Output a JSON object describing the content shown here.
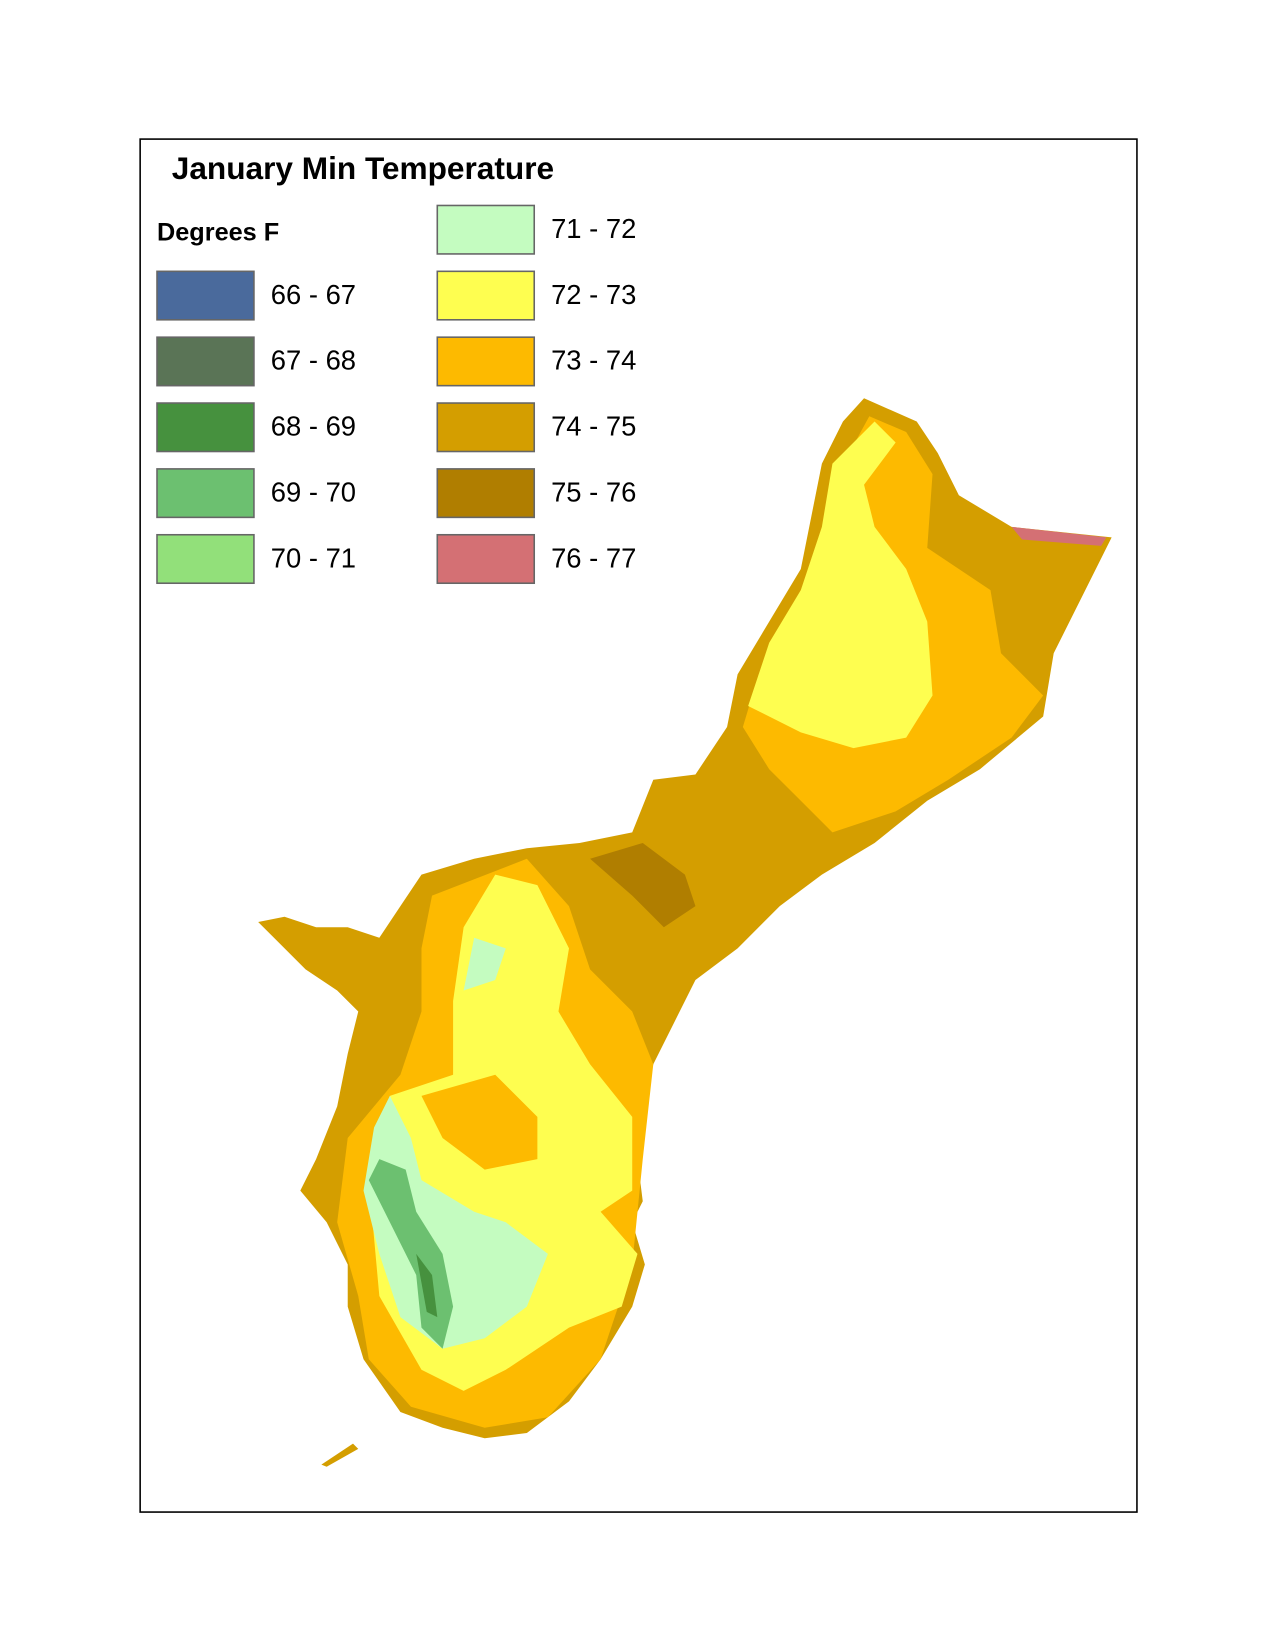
{
  "title": "January Min Temperature",
  "legend": {
    "title": "Degrees F",
    "items": [
      {
        "label": "66 - 67",
        "color": "#4a6a9c"
      },
      {
        "label": "67 - 68",
        "color": "#5a7456"
      },
      {
        "label": "68 - 69",
        "color": "#46913e"
      },
      {
        "label": "69 - 70",
        "color": "#6cc070"
      },
      {
        "label": "70 - 71",
        "color": "#92e07a"
      },
      {
        "label": "71 - 72",
        "color": "#c4fcc0"
      },
      {
        "label": "72 - 73",
        "color": "#fefe50"
      },
      {
        "label": "73 - 74",
        "color": "#fdba00"
      },
      {
        "label": "74 - 75",
        "color": "#d49e00"
      },
      {
        "label": "75 - 76",
        "color": "#b07e00"
      },
      {
        "label": "76 - 77",
        "color": "#d47074"
      }
    ]
  }
}
